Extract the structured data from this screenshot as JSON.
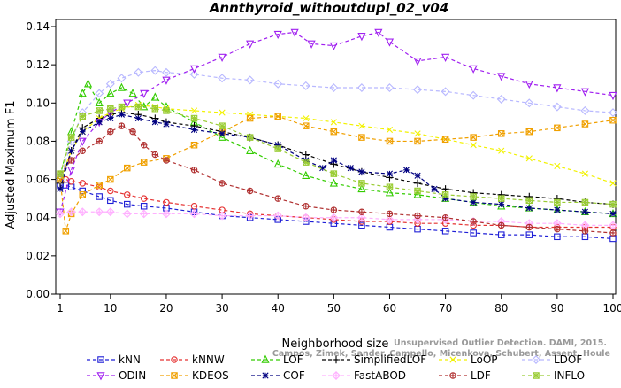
{
  "chart_data": {
    "type": "line",
    "title": "Annthyroid_withoutdupl_02_v04",
    "xlabel": "Neighborhood size",
    "ylabel": "Adjusted Maximum F1",
    "xlim": [
      1,
      100
    ],
    "ylim": [
      0,
      0.14
    ],
    "xticks": [
      "1",
      "10",
      "20",
      "30",
      "40",
      "50",
      "60",
      "70",
      "80",
      "90",
      "100"
    ],
    "yticks": [
      "0.00",
      "0.02",
      "0.04",
      "0.06",
      "0.08",
      "0.10",
      "0.12",
      "0.14"
    ],
    "grid": false,
    "legend_position": "bottom",
    "watermark": "Campos, Zimek, Sander, Campello, Micenkova, Schubert, Assent, Houle: On the Evaluation of Unsupervised Outlier Detection. DAMI, 2015.",
    "watermark_lines": [
      "Unsupervised Outlier Detection. DAMI, 2015.",
      "Campos, Zimek, Sander, Campello, Micenkova, Schubert, Assent, Houle"
    ],
    "series": [
      {
        "name": "kNN",
        "color": "#1f1fd6",
        "marker": "square",
        "x": [
          1,
          2,
          3,
          5,
          8,
          10,
          13,
          16,
          20,
          25,
          30,
          35,
          40,
          45,
          50,
          55,
          60,
          65,
          70,
          75,
          80,
          85,
          90,
          95,
          100
        ],
        "y": [
          0.057,
          0.057,
          0.056,
          0.054,
          0.051,
          0.049,
          0.047,
          0.046,
          0.045,
          0.043,
          0.041,
          0.04,
          0.039,
          0.038,
          0.037,
          0.036,
          0.035,
          0.034,
          0.033,
          0.032,
          0.031,
          0.031,
          0.03,
          0.03,
          0.029
        ]
      },
      {
        "name": "kNNW",
        "color": "#e53030",
        "marker": "circle",
        "x": [
          1,
          2,
          3,
          5,
          8,
          10,
          13,
          16,
          20,
          25,
          30,
          35,
          40,
          45,
          50,
          55,
          60,
          65,
          70,
          75,
          80,
          85,
          90,
          95,
          100
        ],
        "y": [
          0.06,
          0.06,
          0.059,
          0.058,
          0.056,
          0.054,
          0.052,
          0.05,
          0.048,
          0.046,
          0.044,
          0.042,
          0.041,
          0.04,
          0.039,
          0.038,
          0.038,
          0.037,
          0.037,
          0.036,
          0.036,
          0.035,
          0.035,
          0.035,
          0.035
        ]
      },
      {
        "name": "LOF",
        "color": "#33cc00",
        "marker": "triangle",
        "x": [
          1,
          3,
          5,
          6,
          8,
          10,
          12,
          14,
          16,
          18,
          20,
          25,
          30,
          35,
          40,
          45,
          50,
          55,
          60,
          65,
          70,
          75,
          80,
          85,
          90,
          95,
          100
        ],
        "y": [
          0.062,
          0.085,
          0.105,
          0.11,
          0.1,
          0.105,
          0.108,
          0.105,
          0.098,
          0.103,
          0.098,
          0.09,
          0.082,
          0.075,
          0.068,
          0.062,
          0.058,
          0.055,
          0.053,
          0.052,
          0.05,
          0.048,
          0.046,
          0.045,
          0.044,
          0.043,
          0.042
        ]
      },
      {
        "name": "SimplifiedLOF",
        "color": "#000000",
        "marker": "plus",
        "x": [
          1,
          3,
          5,
          8,
          10,
          12,
          15,
          18,
          20,
          25,
          30,
          35,
          40,
          45,
          50,
          55,
          60,
          65,
          70,
          75,
          80,
          85,
          90,
          95,
          100
        ],
        "y": [
          0.058,
          0.075,
          0.087,
          0.092,
          0.094,
          0.095,
          0.094,
          0.092,
          0.09,
          0.088,
          0.085,
          0.082,
          0.078,
          0.073,
          0.068,
          0.064,
          0.061,
          0.058,
          0.055,
          0.053,
          0.052,
          0.051,
          0.05,
          0.048,
          0.047
        ]
      },
      {
        "name": "LoOP",
        "color": "#f2f200",
        "marker": "x",
        "x": [
          1,
          3,
          5,
          8,
          10,
          12,
          15,
          18,
          20,
          25,
          30,
          35,
          40,
          45,
          50,
          55,
          60,
          65,
          70,
          75,
          80,
          85,
          90,
          95,
          100
        ],
        "y": [
          0.06,
          0.075,
          0.085,
          0.092,
          0.095,
          0.097,
          0.099,
          0.098,
          0.097,
          0.096,
          0.095,
          0.094,
          0.093,
          0.092,
          0.09,
          0.088,
          0.086,
          0.084,
          0.081,
          0.078,
          0.075,
          0.071,
          0.067,
          0.063,
          0.058
        ]
      },
      {
        "name": "LDOF",
        "color": "#b8b8ff",
        "marker": "diamond",
        "x": [
          1,
          3,
          5,
          8,
          10,
          12,
          15,
          18,
          20,
          25,
          30,
          35,
          40,
          45,
          50,
          55,
          60,
          65,
          70,
          75,
          80,
          85,
          90,
          95,
          100
        ],
        "y": [
          0.06,
          0.08,
          0.095,
          0.105,
          0.11,
          0.113,
          0.116,
          0.117,
          0.116,
          0.115,
          0.113,
          0.112,
          0.11,
          0.109,
          0.108,
          0.108,
          0.108,
          0.107,
          0.106,
          0.104,
          0.102,
          0.1,
          0.098,
          0.096,
          0.095
        ]
      },
      {
        "name": "ODIN",
        "color": "#a020f0",
        "marker": "triangle-down",
        "x": [
          1,
          3,
          5,
          8,
          10,
          13,
          16,
          20,
          25,
          30,
          35,
          40,
          43,
          46,
          50,
          55,
          58,
          60,
          65,
          70,
          75,
          80,
          85,
          90,
          95,
          100
        ],
        "y": [
          0.043,
          0.065,
          0.08,
          0.09,
          0.095,
          0.1,
          0.105,
          0.112,
          0.118,
          0.124,
          0.131,
          0.136,
          0.137,
          0.131,
          0.13,
          0.135,
          0.137,
          0.132,
          0.122,
          0.124,
          0.118,
          0.114,
          0.11,
          0.108,
          0.106,
          0.104
        ]
      },
      {
        "name": "KDEOS",
        "color": "#f0a000",
        "marker": "square-x",
        "x": [
          1,
          2,
          3,
          5,
          8,
          10,
          13,
          16,
          20,
          25,
          30,
          35,
          40,
          45,
          50,
          55,
          60,
          65,
          70,
          75,
          80,
          85,
          90,
          95,
          100
        ],
        "y": [
          0.06,
          0.033,
          0.042,
          0.052,
          0.057,
          0.06,
          0.066,
          0.069,
          0.071,
          0.078,
          0.085,
          0.092,
          0.093,
          0.088,
          0.085,
          0.082,
          0.08,
          0.08,
          0.081,
          0.082,
          0.084,
          0.085,
          0.087,
          0.089,
          0.091
        ]
      },
      {
        "name": "COF",
        "color": "#000080",
        "marker": "asterisk",
        "x": [
          1,
          3,
          5,
          8,
          10,
          12,
          15,
          18,
          20,
          25,
          30,
          35,
          40,
          45,
          48,
          50,
          53,
          55,
          60,
          63,
          65,
          68,
          70,
          75,
          80,
          85,
          90,
          95,
          100
        ],
        "y": [
          0.055,
          0.075,
          0.085,
          0.09,
          0.092,
          0.094,
          0.092,
          0.09,
          0.089,
          0.086,
          0.084,
          0.082,
          0.078,
          0.07,
          0.066,
          0.07,
          0.066,
          0.064,
          0.063,
          0.065,
          0.062,
          0.055,
          0.05,
          0.048,
          0.047,
          0.045,
          0.044,
          0.043,
          0.042
        ]
      },
      {
        "name": "FastABOD",
        "color": "#ffb0ff",
        "marker": "diamond-plus",
        "x": [
          1,
          3,
          5,
          8,
          10,
          13,
          16,
          20,
          25,
          30,
          35,
          40,
          45,
          50,
          55,
          60,
          65,
          70,
          75,
          80,
          85,
          90,
          95,
          100
        ],
        "y": [
          0.042,
          0.043,
          0.043,
          0.043,
          0.043,
          0.042,
          0.042,
          0.042,
          0.042,
          0.041,
          0.041,
          0.041,
          0.04,
          0.04,
          0.04,
          0.039,
          0.039,
          0.039,
          0.038,
          0.038,
          0.037,
          0.037,
          0.036,
          0.036
        ]
      },
      {
        "name": "LDF",
        "color": "#b03030",
        "marker": "circle-plus",
        "x": [
          1,
          3,
          5,
          8,
          10,
          12,
          14,
          16,
          18,
          20,
          25,
          30,
          35,
          40,
          45,
          50,
          55,
          60,
          65,
          70,
          75,
          80,
          85,
          90,
          95,
          100
        ],
        "y": [
          0.063,
          0.07,
          0.075,
          0.08,
          0.085,
          0.088,
          0.085,
          0.078,
          0.073,
          0.07,
          0.065,
          0.058,
          0.054,
          0.05,
          0.046,
          0.044,
          0.043,
          0.042,
          0.041,
          0.04,
          0.038,
          0.036,
          0.035,
          0.034,
          0.033,
          0.032
        ]
      },
      {
        "name": "INFLO",
        "color": "#99cc33",
        "marker": "square-star",
        "x": [
          1,
          3,
          5,
          8,
          10,
          12,
          15,
          18,
          20,
          25,
          30,
          35,
          40,
          45,
          50,
          55,
          60,
          65,
          70,
          75,
          80,
          85,
          90,
          95,
          100
        ],
        "y": [
          0.063,
          0.082,
          0.093,
          0.096,
          0.097,
          0.098,
          0.098,
          0.097,
          0.096,
          0.092,
          0.088,
          0.082,
          0.076,
          0.069,
          0.063,
          0.058,
          0.056,
          0.054,
          0.052,
          0.051,
          0.05,
          0.049,
          0.048,
          0.048,
          0.047
        ]
      }
    ]
  }
}
